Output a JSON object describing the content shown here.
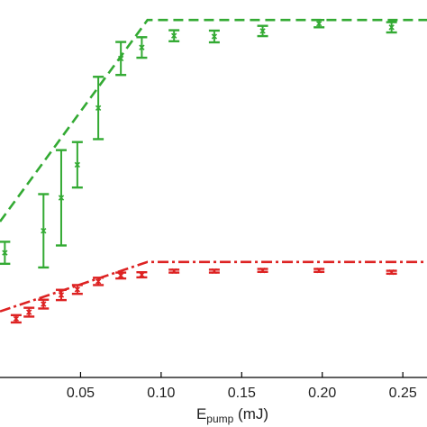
{
  "chart_data": {
    "type": "scatter",
    "title": "",
    "xlabel": {
      "base": "E",
      "subscript": "pump",
      "suffix": " (mJ)"
    },
    "ylabel": "",
    "xlim": [
      0.0,
      0.265
    ],
    "ylim": [
      0.0,
      1.0
    ],
    "x_ticks": [
      0.05,
      0.1,
      0.15,
      0.2,
      0.25
    ],
    "x_tick_labels": [
      "0.05",
      "0.10",
      "0.15",
      "0.20",
      "0.25"
    ],
    "grid": false,
    "series": [
      {
        "color": "#33aa33",
        "marker": "x",
        "points": [
          {
            "x": 0.003,
            "y": 0.34,
            "err": 0.03
          },
          {
            "x": 0.027,
            "y": 0.4,
            "err": 0.1
          },
          {
            "x": 0.038,
            "y": 0.49,
            "err": 0.13
          },
          {
            "x": 0.048,
            "y": 0.58,
            "err": 0.062
          },
          {
            "x": 0.061,
            "y": 0.735,
            "err": 0.085
          },
          {
            "x": 0.075,
            "y": 0.87,
            "err": 0.045
          },
          {
            "x": 0.088,
            "y": 0.9,
            "err": 0.028
          },
          {
            "x": 0.108,
            "y": 0.932,
            "err": 0.015
          },
          {
            "x": 0.133,
            "y": 0.93,
            "err": 0.016
          },
          {
            "x": 0.163,
            "y": 0.945,
            "err": 0.014
          },
          {
            "x": 0.198,
            "y": 0.965,
            "err": 0.01
          },
          {
            "x": 0.243,
            "y": 0.955,
            "err": 0.014
          }
        ],
        "fit": {
          "style": "dashed",
          "x": [
            0.0,
            0.0915,
            0.265
          ],
          "y": [
            0.425,
            0.975,
            0.975
          ]
        }
      },
      {
        "color": "#dd2222",
        "marker": "x",
        "points": [
          {
            "x": 0.01,
            "y": 0.16,
            "err": 0.01
          },
          {
            "x": 0.018,
            "y": 0.178,
            "err": 0.012
          },
          {
            "x": 0.027,
            "y": 0.2,
            "err": 0.012
          },
          {
            "x": 0.038,
            "y": 0.225,
            "err": 0.014
          },
          {
            "x": 0.048,
            "y": 0.24,
            "err": 0.012
          },
          {
            "x": 0.061,
            "y": 0.262,
            "err": 0.01
          },
          {
            "x": 0.075,
            "y": 0.278,
            "err": 0.008
          },
          {
            "x": 0.088,
            "y": 0.28,
            "err": 0.007
          },
          {
            "x": 0.108,
            "y": 0.29,
            "err": 0.004
          },
          {
            "x": 0.133,
            "y": 0.29,
            "err": 0.004
          },
          {
            "x": 0.163,
            "y": 0.292,
            "err": 0.004
          },
          {
            "x": 0.198,
            "y": 0.292,
            "err": 0.004
          },
          {
            "x": 0.243,
            "y": 0.287,
            "err": 0.004
          }
        ],
        "fit": {
          "style": "dashdot",
          "x": [
            0.0,
            0.0915,
            0.265
          ],
          "y": [
            0.18,
            0.315,
            0.315
          ]
        }
      }
    ]
  }
}
